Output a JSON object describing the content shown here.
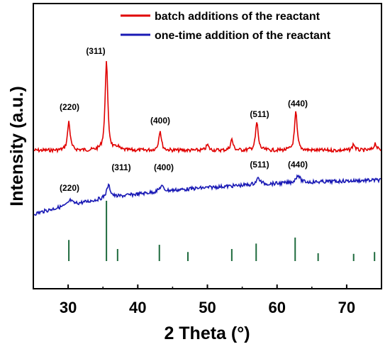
{
  "chart_data": {
    "type": "line",
    "xlabel": "2 Theta (°)",
    "ylabel": "Intensity (a.u.)",
    "xlim": [
      25,
      75
    ],
    "xticks": [
      30,
      40,
      50,
      60,
      70
    ],
    "grid": false,
    "legend_position": "top-right",
    "series": [
      {
        "name": "batch additions of the reactant",
        "color": "#e00000",
        "peaks": [
          {
            "x": 30.1,
            "height": 0.32,
            "label": "(220)"
          },
          {
            "x": 35.5,
            "height": 1.0,
            "label": "(311)"
          },
          {
            "x": 37.1,
            "height": 0.04,
            "label": ""
          },
          {
            "x": 43.2,
            "height": 0.22,
            "label": "(400)"
          },
          {
            "x": 50.0,
            "height": 0.06,
            "label": ""
          },
          {
            "x": 53.5,
            "height": 0.12,
            "label": ""
          },
          {
            "x": 57.1,
            "height": 0.31,
            "label": "(511)"
          },
          {
            "x": 62.7,
            "height": 0.42,
            "label": "(440)"
          },
          {
            "x": 71.0,
            "height": 0.07,
            "label": ""
          },
          {
            "x": 74.1,
            "height": 0.08,
            "label": ""
          }
        ]
      },
      {
        "name": "one-time addition of the reactant",
        "color": "#1a1ab5",
        "peaks": [
          {
            "x": 30.3,
            "height": 0.06,
            "label": "(220)"
          },
          {
            "x": 35.8,
            "height": 0.16,
            "label": "(311)"
          },
          {
            "x": 43.4,
            "height": 0.07,
            "label": "(400)"
          },
          {
            "x": 57.3,
            "height": 0.08,
            "label": "(511)"
          },
          {
            "x": 63.0,
            "height": 0.1,
            "label": "(440)"
          }
        ]
      },
      {
        "name": "",
        "color": "#1f6b3e",
        "type": "stick",
        "sticks": [
          {
            "x": 30.1,
            "height": 0.35
          },
          {
            "x": 35.5,
            "height": 1.0
          },
          {
            "x": 37.1,
            "height": 0.2
          },
          {
            "x": 43.1,
            "height": 0.27
          },
          {
            "x": 47.2,
            "height": 0.15
          },
          {
            "x": 53.5,
            "height": 0.2
          },
          {
            "x": 57.0,
            "height": 0.29
          },
          {
            "x": 62.6,
            "height": 0.39
          },
          {
            "x": 65.9,
            "height": 0.13
          },
          {
            "x": 71.0,
            "height": 0.12
          },
          {
            "x": 74.0,
            "height": 0.15
          }
        ]
      }
    ]
  },
  "peak_labels": {
    "red": [
      "(220)",
      "(311)",
      "(400)",
      "(511)",
      "(440)"
    ],
    "blue": [
      "(220)",
      "(311)",
      "(400)",
      "(511)",
      "(440)"
    ]
  }
}
